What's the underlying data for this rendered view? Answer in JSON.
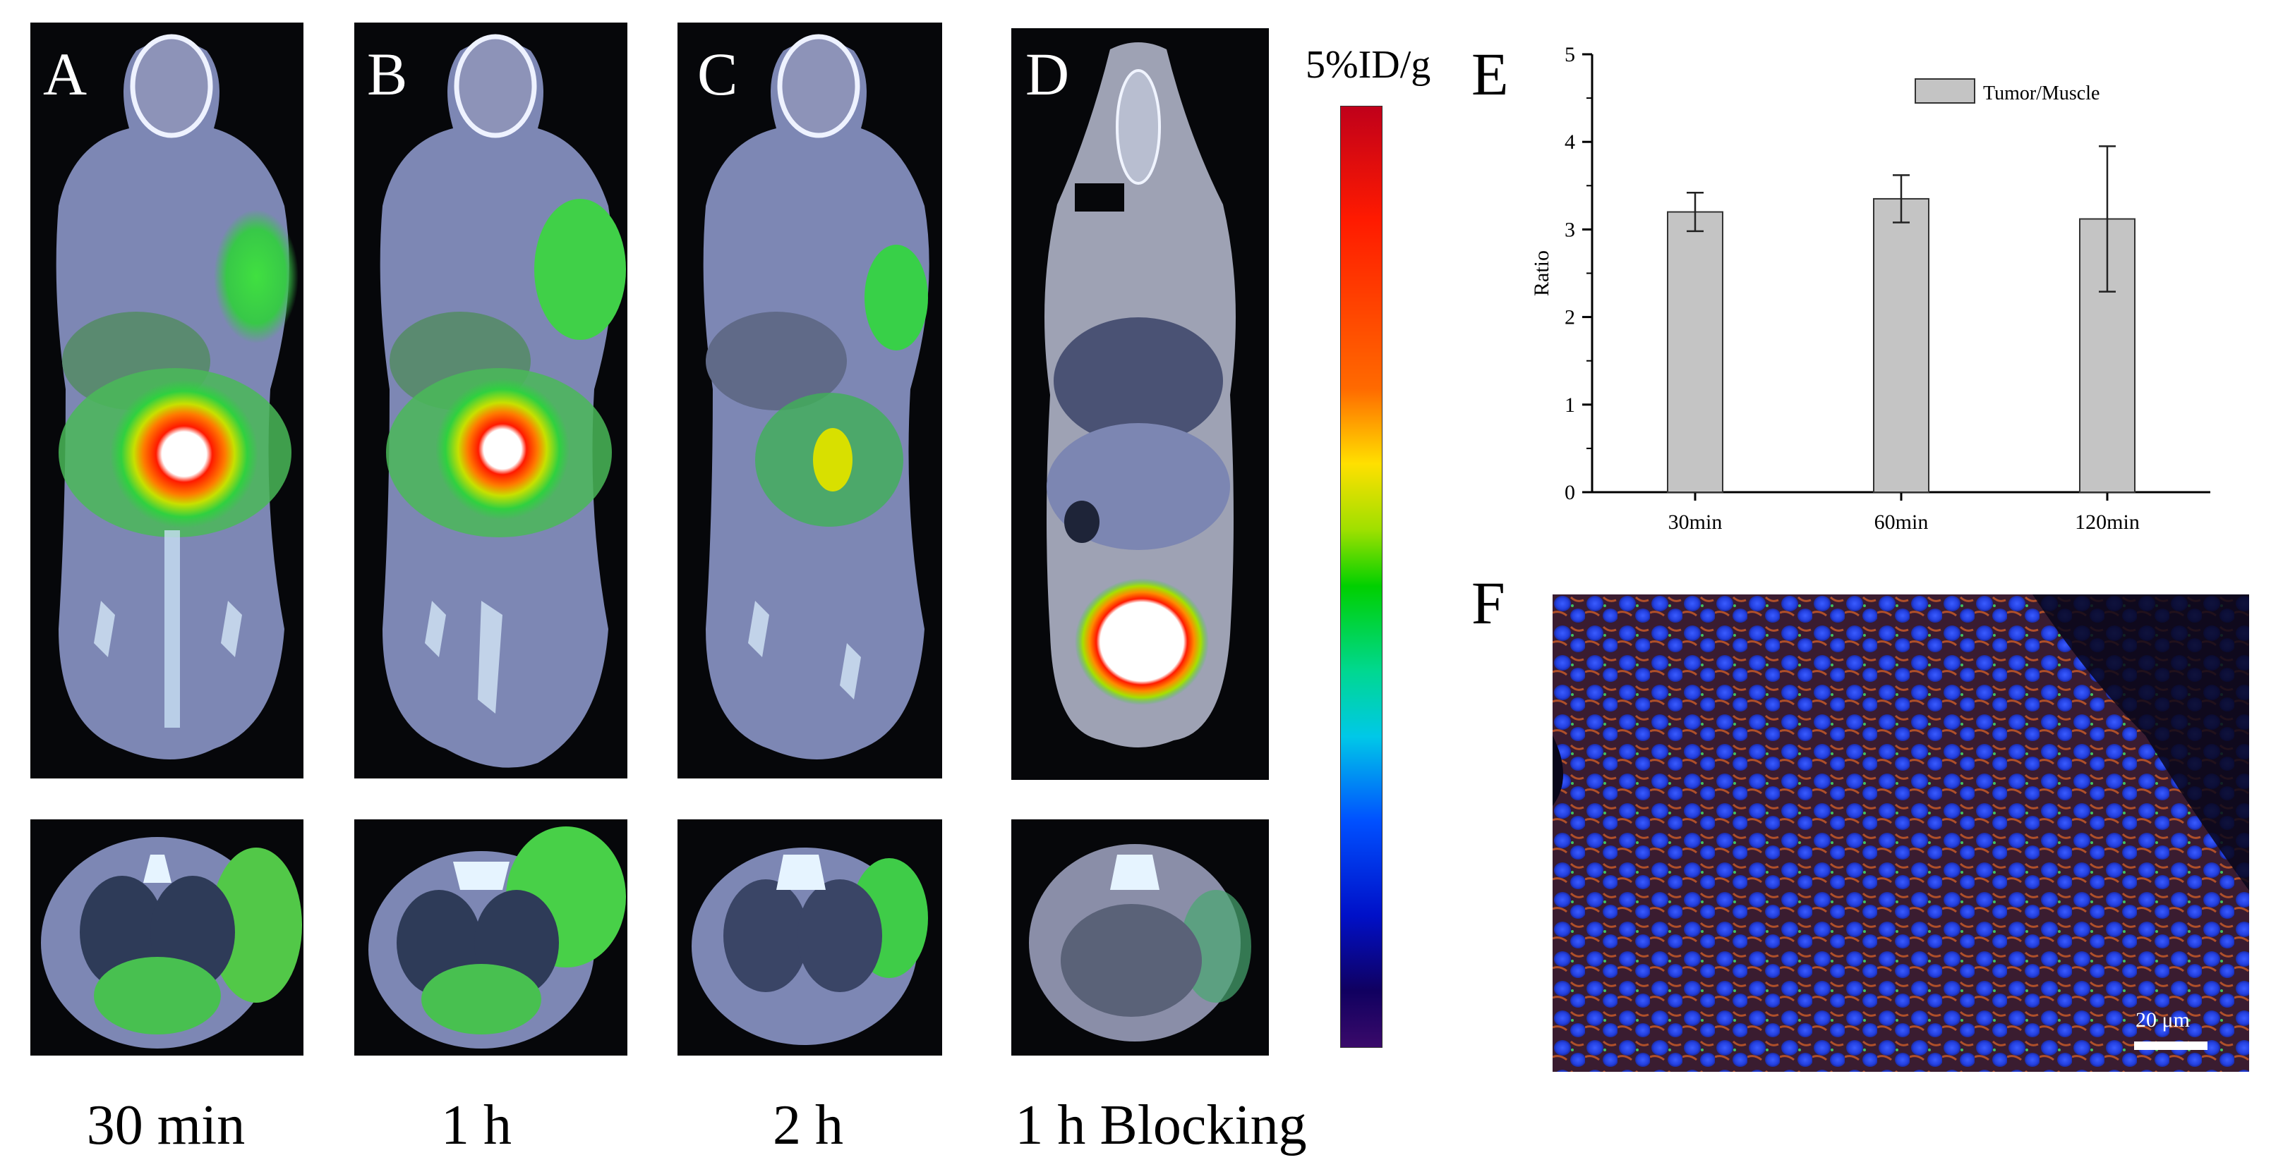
{
  "panels": [
    {
      "letter": "A",
      "caption": "30 min"
    },
    {
      "letter": "B",
      "caption": "1 h"
    },
    {
      "letter": "C",
      "caption": "2 h"
    },
    {
      "letter": "D",
      "caption": "1 h Blocking"
    }
  ],
  "colorbar": {
    "label": "5%ID/g",
    "top_color": "#c0001a",
    "bottom_color": "#3a0a6a"
  },
  "panel_e": {
    "letter": "E"
  },
  "panel_f": {
    "letter": "F",
    "scale_label": "20 μm"
  },
  "chart_data": {
    "type": "bar",
    "categories": [
      "30min",
      "60min",
      "120min"
    ],
    "series": [
      {
        "name": "Tumor/Muscle",
        "values": [
          3.2,
          3.35,
          3.12
        ],
        "error": [
          0.22,
          0.27,
          0.83
        ]
      }
    ],
    "xlabel": "",
    "ylabel": "Ratio",
    "ylim": [
      0,
      5
    ],
    "yticks": [
      "0",
      "1",
      "2",
      "3",
      "4",
      "5"
    ],
    "legend_position": "top-right",
    "bar_color": "#c4c4c4",
    "grid": false
  }
}
